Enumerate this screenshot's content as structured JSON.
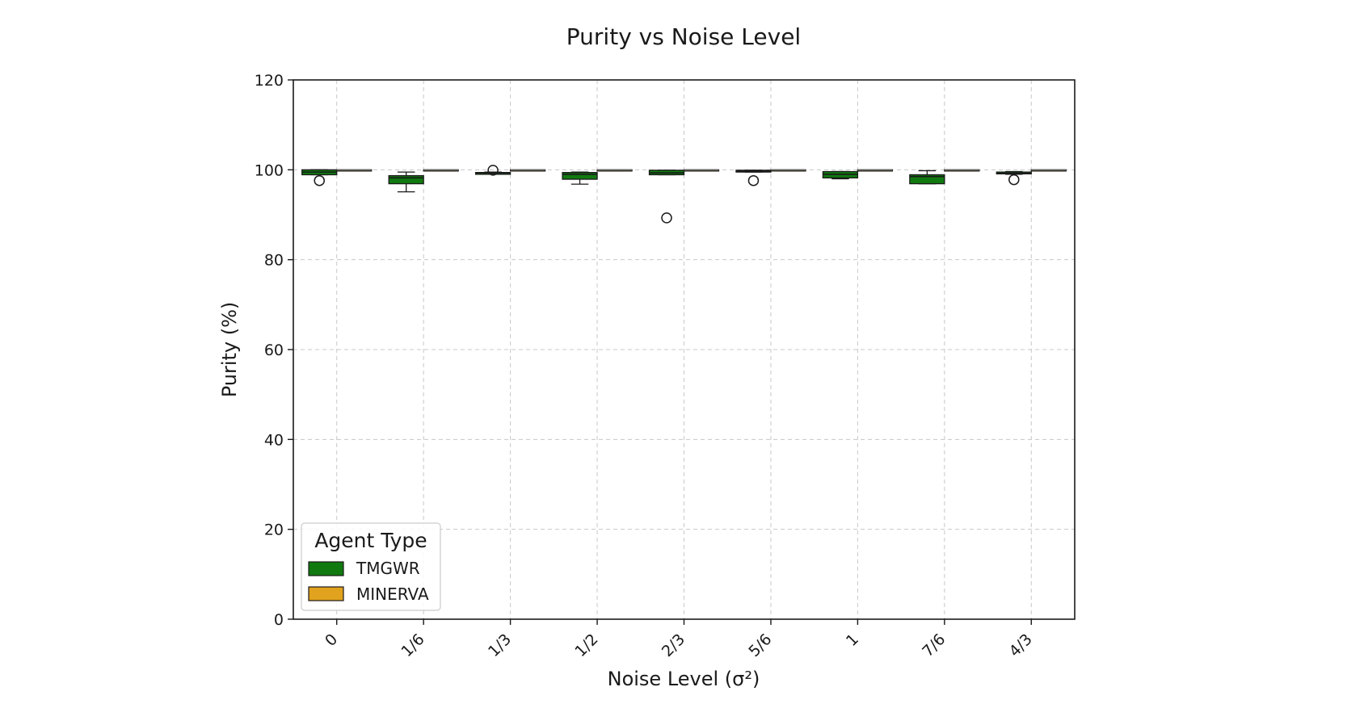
{
  "chart_data": {
    "type": "boxplot",
    "title": "Purity vs Noise Level",
    "xlabel": "Noise Level (σ²)",
    "ylabel": "Purity (%)",
    "categories": [
      "0",
      "1/6",
      "1/3",
      "1/2",
      "2/3",
      "5/6",
      "1",
      "7/6",
      "4/3"
    ],
    "ylim": [
      0,
      120
    ],
    "yticks": [
      "0",
      "20",
      "40",
      "60",
      "80",
      "100",
      "120"
    ],
    "grid": true,
    "legend": {
      "title": "Agent Type",
      "placement": "bottom-left"
    },
    "series": [
      {
        "name": "TMGWR",
        "color": "#107a10",
        "boxes": [
          {
            "whislo": 98.9,
            "q1": 98.9,
            "med": 99.5,
            "q3": 100,
            "whishi": 100,
            "fliers": [
              97.6
            ]
          },
          {
            "whislo": 95.1,
            "q1": 96.9,
            "med": 98.2,
            "q3": 98.7,
            "whishi": 99.5,
            "fliers": []
          },
          {
            "whislo": 99.0,
            "q1": 99.0,
            "med": 99.3,
            "q3": 99.4,
            "whishi": 99.5,
            "fliers": [
              99.9
            ]
          },
          {
            "whislo": 96.8,
            "q1": 97.9,
            "med": 99.0,
            "q3": 99.4,
            "whishi": 99.5,
            "fliers": []
          },
          {
            "whislo": 98.9,
            "q1": 98.9,
            "med": 99.3,
            "q3": 99.9,
            "whishi": 99.9,
            "fliers": [
              89.3
            ]
          },
          {
            "whislo": 99.5,
            "q1": 99.5,
            "med": 99.7,
            "q3": 99.9,
            "whishi": 99.9,
            "fliers": [
              97.6
            ]
          },
          {
            "whislo": 98.0,
            "q1": 98.2,
            "med": 99.0,
            "q3": 99.6,
            "whishi": 99.6,
            "fliers": []
          },
          {
            "whislo": 96.9,
            "q1": 96.9,
            "med": 98.5,
            "q3": 98.9,
            "whishi": 99.8,
            "fliers": []
          },
          {
            "whislo": 99.0,
            "q1": 99.1,
            "med": 99.2,
            "q3": 99.5,
            "whishi": 99.6,
            "fliers": [
              97.8
            ]
          }
        ]
      },
      {
        "name": "MINERVA",
        "color": "#e1a21e",
        "boxes": [
          {
            "whislo": 100,
            "q1": 100,
            "med": 100,
            "q3": 100,
            "whishi": 100,
            "fliers": []
          },
          {
            "whislo": 100,
            "q1": 100,
            "med": 100,
            "q3": 100,
            "whishi": 100,
            "fliers": []
          },
          {
            "whislo": 100,
            "q1": 100,
            "med": 100,
            "q3": 100,
            "whishi": 100,
            "fliers": []
          },
          {
            "whislo": 100,
            "q1": 100,
            "med": 100,
            "q3": 100,
            "whishi": 100,
            "fliers": []
          },
          {
            "whislo": 100,
            "q1": 100,
            "med": 100,
            "q3": 100,
            "whishi": 100,
            "fliers": []
          },
          {
            "whislo": 100,
            "q1": 100,
            "med": 100,
            "q3": 100,
            "whishi": 100,
            "fliers": []
          },
          {
            "whislo": 100,
            "q1": 100,
            "med": 100,
            "q3": 100,
            "whishi": 100,
            "fliers": []
          },
          {
            "whislo": 100,
            "q1": 100,
            "med": 100,
            "q3": 100,
            "whishi": 100,
            "fliers": []
          },
          {
            "whislo": 100,
            "q1": 100,
            "med": 100,
            "q3": 100,
            "whishi": 100,
            "fliers": []
          }
        ]
      }
    ]
  }
}
